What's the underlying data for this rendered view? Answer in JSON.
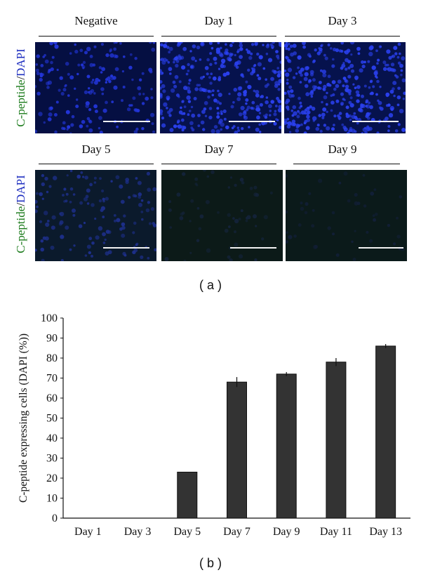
{
  "panel_a": {
    "label": "( a )",
    "row_labels": [
      {
        "green": "C-peptide",
        "slash": "/",
        "blue": "DAPI"
      },
      {
        "green": "C-peptide",
        "slash": "/",
        "blue": "DAPI"
      }
    ],
    "columns": [
      {
        "title": "Negative",
        "background": "#050f42",
        "cell_color": "#2235d8",
        "cell_density": 0.45
      },
      {
        "title": "Day 1",
        "background": "#06124d",
        "cell_color": "#2a40ee",
        "cell_density": 0.85
      },
      {
        "title": "Day 3",
        "background": "#06124d",
        "cell_color": "#2a40ee",
        "cell_density": 0.9
      },
      {
        "title": "Day 5",
        "background": "#0b1a2c",
        "cell_color": "#1d2f8a",
        "cell_density": 0.35
      },
      {
        "title": "Day 7",
        "background": "#0c1a18",
        "cell_color": "#14233a",
        "cell_density": 0.15
      },
      {
        "title": "Day 9",
        "background": "#0b1a1a",
        "cell_color": "#121f38",
        "cell_density": 0.12
      }
    ]
  },
  "panel_b": {
    "label": "( b )"
  },
  "chart_data": {
    "type": "bar",
    "categories": [
      "Day 1",
      "Day 3",
      "Day 5",
      "Day 7",
      "Day 9",
      "Day 11",
      "Day 13"
    ],
    "values": [
      0,
      0,
      23,
      68,
      72,
      78,
      86
    ],
    "errors": [
      0,
      0,
      0,
      2.5,
      1,
      2,
      1
    ],
    "xlabel": "",
    "ylabel": "C-peptide expressing cells (DAPI (%))",
    "ylim": [
      0,
      100
    ],
    "yticks": [
      0,
      10,
      20,
      30,
      40,
      50,
      60,
      70,
      80,
      90,
      100
    ],
    "bar_color": "#333333",
    "grid": false
  }
}
